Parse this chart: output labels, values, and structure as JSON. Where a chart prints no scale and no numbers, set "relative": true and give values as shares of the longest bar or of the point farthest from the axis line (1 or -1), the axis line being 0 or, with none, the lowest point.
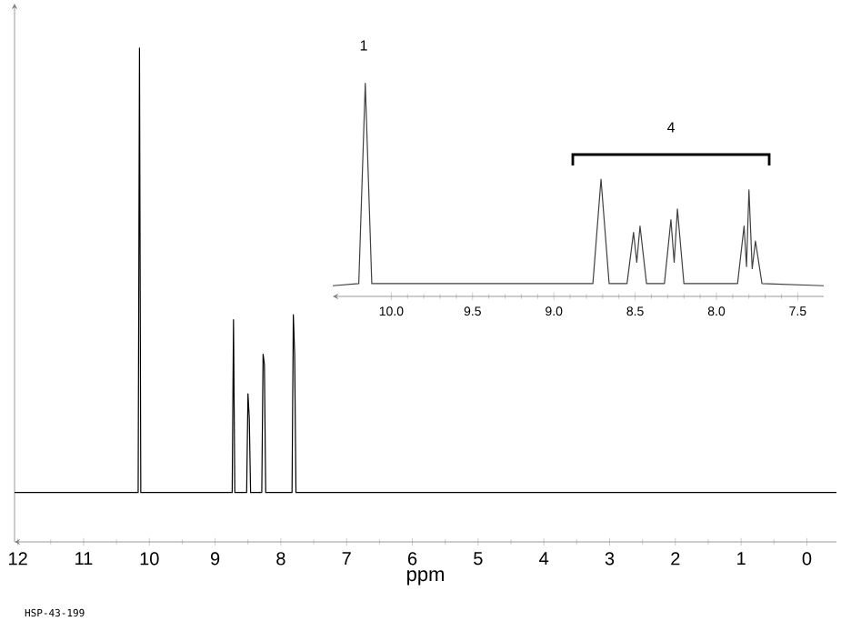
{
  "chart_data": [
    {
      "type": "line",
      "xlabel": "ppm",
      "relative": true,
      "xlim": [
        12.05,
        -0.45
      ],
      "xticks": [
        12,
        11,
        10,
        9,
        8,
        7,
        6,
        5,
        4,
        3,
        2,
        1,
        0
      ],
      "marker": "none",
      "line_style": "solid",
      "annotations": [
        "HSP-43-199"
      ],
      "series": [
        {
          "color": "#000000",
          "x": [
            12.05,
            10.17,
            10.15,
            10.13,
            8.74,
            8.72,
            8.7,
            8.52,
            8.5,
            8.48,
            8.46,
            8.29,
            8.27,
            8.25,
            8.23,
            7.83,
            7.81,
            7.79,
            7.77,
            -0.45
          ],
          "values": [
            0.1,
            0.1,
            1.0,
            0.1,
            0.1,
            0.45,
            0.1,
            0.1,
            0.3,
            0.25,
            0.1,
            0.1,
            0.38,
            0.36,
            0.1,
            0.1,
            0.46,
            0.38,
            0.1,
            0.1
          ]
        }
      ]
    },
    {
      "type": "line",
      "relative": true,
      "xlim": [
        10.36,
        7.34
      ],
      "xticks": [
        {
          "value": 10,
          "label": "10.0"
        },
        {
          "value": 9.5,
          "label": "9.5"
        },
        {
          "value": 9,
          "label": "9.0"
        },
        {
          "value": 8.5,
          "label": "8.5"
        },
        {
          "value": 8,
          "label": "8.0"
        },
        {
          "value": 7.5,
          "label": "7.5"
        }
      ],
      "marker": "none",
      "line_style": "solid",
      "annotations": [
        "1",
        "4"
      ],
      "series": [
        {
          "color": "#404040",
          "x": [
            10.36,
            10.2,
            10.16,
            10.12,
            8.76,
            8.71,
            8.66,
            8.55,
            8.51,
            8.49,
            8.47,
            8.43,
            8.32,
            8.28,
            8.26,
            8.24,
            8.2,
            7.87,
            7.83,
            7.815,
            7.8,
            7.78,
            7.76,
            7.72,
            7.34
          ],
          "values": [
            0.05,
            0.06,
            1.0,
            0.06,
            0.06,
            0.55,
            0.06,
            0.06,
            0.3,
            0.16,
            0.33,
            0.06,
            0.06,
            0.36,
            0.16,
            0.41,
            0.06,
            0.06,
            0.33,
            0.14,
            0.5,
            0.13,
            0.26,
            0.06,
            0.05
          ]
        }
      ]
    }
  ]
}
